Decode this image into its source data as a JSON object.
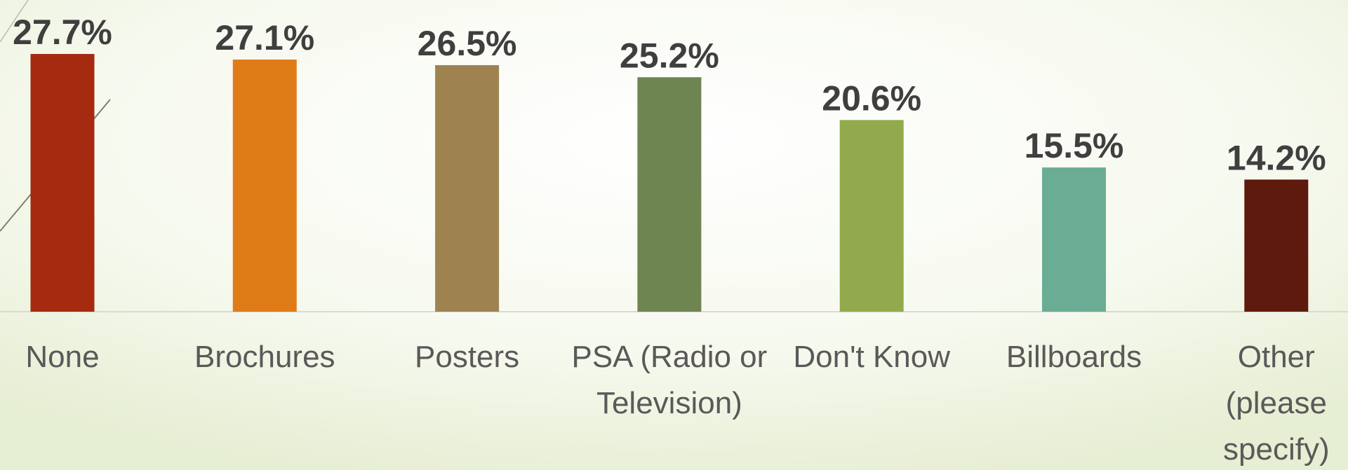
{
  "chart_data": {
    "type": "bar",
    "categories": [
      "None",
      "Brochures",
      "Posters",
      "PSA (Radio or Television)",
      "Don't Know",
      "Billboards",
      "Other (please specify)"
    ],
    "values": [
      27.7,
      27.1,
      26.5,
      25.2,
      20.6,
      15.5,
      14.2
    ],
    "value_labels": [
      "27.7%",
      "27.1%",
      "26.5%",
      "25.2%",
      "20.6%",
      "15.5%",
      "14.2%"
    ],
    "colors": [
      "#a52a0f",
      "#df7c18",
      "#9e8350",
      "#6f8551",
      "#92aa4b",
      "#6aad94",
      "#5e1a0c"
    ],
    "ylim": [
      0,
      33.5
    ]
  }
}
